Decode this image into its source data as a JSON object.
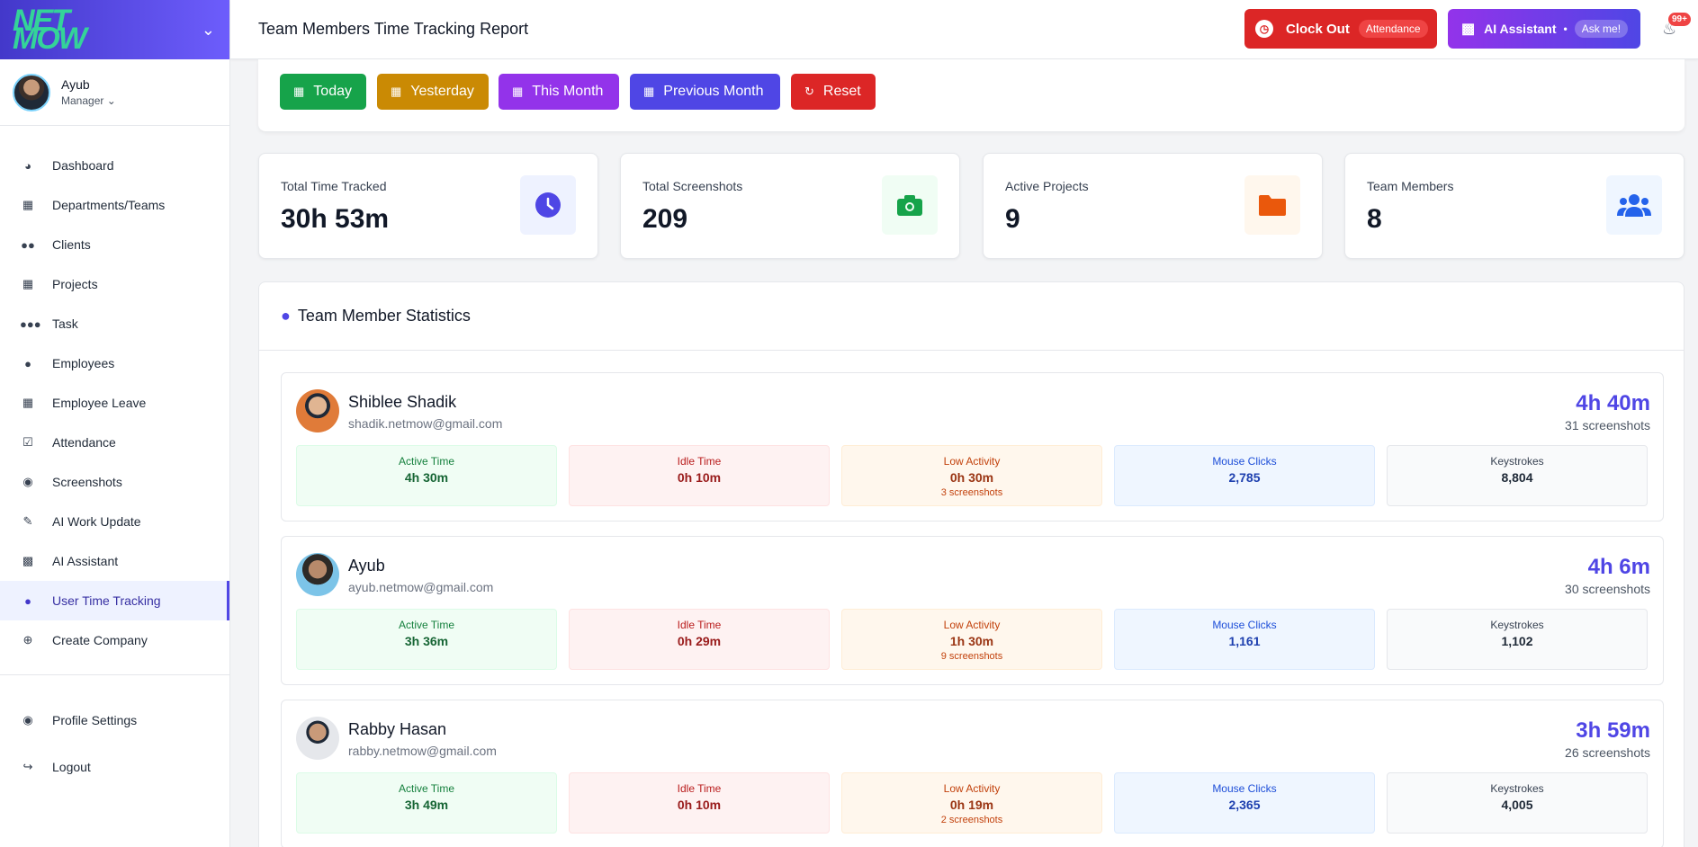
{
  "brand": {
    "logo_line1": "NET",
    "logo_line2": "MOW"
  },
  "user": {
    "name": "Ayub",
    "role": "Manager"
  },
  "sidebar": {
    "items": [
      {
        "label": "Dashboard",
        "icon": "gauge-icon"
      },
      {
        "label": "Departments/Teams",
        "icon": "building-icon"
      },
      {
        "label": "Clients",
        "icon": "users-icon"
      },
      {
        "label": "Projects",
        "icon": "sitemap-icon"
      },
      {
        "label": "Task",
        "icon": "people-group-icon"
      },
      {
        "label": "Employees",
        "icon": "user-icon"
      },
      {
        "label": "Employee Leave",
        "icon": "calendar-x-icon"
      },
      {
        "label": "Attendance",
        "icon": "calendar-check-icon"
      },
      {
        "label": "Screenshots",
        "icon": "camera-icon"
      },
      {
        "label": "AI Work Update",
        "icon": "pen-icon"
      },
      {
        "label": "AI Assistant",
        "icon": "robot-icon"
      },
      {
        "label": "User Time Tracking",
        "icon": "user-clock-icon",
        "active": true
      },
      {
        "label": "Create Company",
        "icon": "plus-circle-icon"
      }
    ],
    "bottom": [
      {
        "label": "Profile Settings",
        "icon": "user-circle-icon"
      },
      {
        "label": "Logout",
        "icon": "logout-icon"
      }
    ]
  },
  "header": {
    "title": "Team Members Time Tracking Report",
    "clock_out": "Clock Out",
    "attendance": "Attendance",
    "ai_assistant": "AI Assistant",
    "ask_me": "Ask me!",
    "notifications": "99+"
  },
  "filters": [
    "Today",
    "Yesterday",
    "This Month",
    "Previous Month",
    "Reset"
  ],
  "stats": [
    {
      "label": "Total Time Tracked",
      "value": "30h 53m",
      "icon": "clock-icon"
    },
    {
      "label": "Total Screenshots",
      "value": "209",
      "icon": "camera-icon"
    },
    {
      "label": "Active Projects",
      "value": "9",
      "icon": "folder-icon"
    },
    {
      "label": "Team Members",
      "value": "8",
      "icon": "users-icon"
    }
  ],
  "section_title": "Team Member Statistics",
  "cell_labels": {
    "active": "Active Time",
    "idle": "Idle Time",
    "low": "Low Activity",
    "mouse": "Mouse Clicks",
    "keys": "Keystrokes"
  },
  "members": [
    {
      "name": "Shiblee Shadik",
      "email": "shadik.netmow@gmail.com",
      "total": "4h 40m",
      "screenshots": "31 screenshots",
      "active": "4h 30m",
      "idle": "0h 10m",
      "low": "0h 30m",
      "low_shots": "3 screenshots",
      "mouse": "2,785",
      "keys": "8,804"
    },
    {
      "name": "Ayub",
      "email": "ayub.netmow@gmail.com",
      "total": "4h 6m",
      "screenshots": "30 screenshots",
      "active": "3h 36m",
      "idle": "0h 29m",
      "low": "1h 30m",
      "low_shots": "9 screenshots",
      "mouse": "1,161",
      "keys": "1,102"
    },
    {
      "name": "Rabby Hasan",
      "email": "rabby.netmow@gmail.com",
      "total": "3h 59m",
      "screenshots": "26 screenshots",
      "active": "3h 49m",
      "idle": "0h 10m",
      "low": "0h 19m",
      "low_shots": "2 screenshots",
      "mouse": "2,365",
      "keys": "4,005"
    }
  ]
}
